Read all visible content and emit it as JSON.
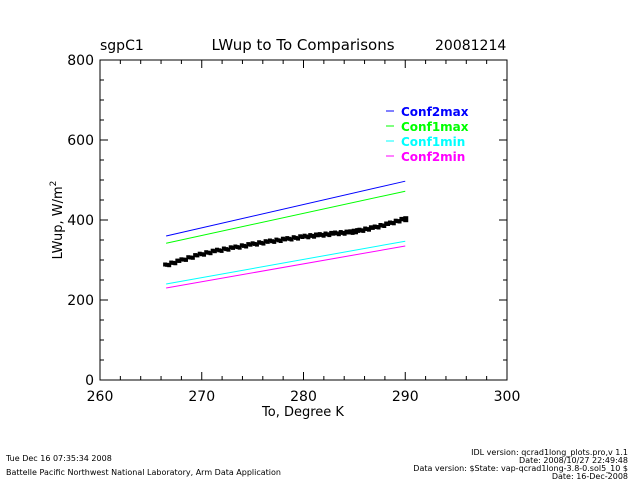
{
  "header": {
    "site": "sgpC1",
    "title": "LWup to To Comparisons",
    "date": "20081214"
  },
  "footer": {
    "left": [
      "Tue Dec 16 07:35:34 2008",
      "Battelle Pacific Northwest National Laboratory, Arm Data Application"
    ],
    "right": [
      "IDL version: qcrad1long_plots.pro,v 1.1",
      "Date: 2008/10/27 22:49:48",
      "Data version: $State: vap-qcrad1long-3.8-0.sol5_10 $",
      "Date: 16-Dec-2008"
    ]
  },
  "chart_data": {
    "type": "scatter",
    "title": "LWup to To Comparisons",
    "xlabel": "To, Degree K",
    "ylabel": "LWup, W/m",
    "ylabel_sup": "2",
    "xlim": [
      260,
      300
    ],
    "ylim": [
      0,
      800
    ],
    "xticks": [
      "260",
      "270",
      "280",
      "290",
      "300"
    ],
    "yticks": [
      "0",
      "200",
      "400",
      "600",
      "800"
    ],
    "legend_position": "top-right",
    "series": [
      {
        "name": "Conf2max",
        "color": "#0000ff",
        "kind": "line",
        "x": [
          266.5,
          290
        ],
        "y": [
          360,
          497
        ]
      },
      {
        "name": "Conf1max",
        "color": "#00ff00",
        "kind": "line",
        "x": [
          266.5,
          290
        ],
        "y": [
          342,
          472
        ]
      },
      {
        "name": "Conf1min",
        "color": "#00ffff",
        "kind": "line",
        "x": [
          266.5,
          290
        ],
        "y": [
          240,
          347
        ]
      },
      {
        "name": "Conf2min",
        "color": "#ff00ff",
        "kind": "line",
        "x": [
          266.5,
          290
        ],
        "y": [
          230,
          335
        ]
      }
    ],
    "data": {
      "name": "LWup",
      "color": "#000000",
      "x": [
        266.4,
        268,
        269.8,
        271.5,
        273.3,
        275,
        276.7,
        278.4,
        280.1,
        281.6,
        283.1,
        284.6,
        285.5,
        287,
        288.5,
        290
      ],
      "y": [
        285,
        298,
        312,
        322,
        330,
        338,
        345,
        351,
        357,
        361,
        365,
        368,
        372,
        380,
        390,
        402
      ]
    }
  }
}
